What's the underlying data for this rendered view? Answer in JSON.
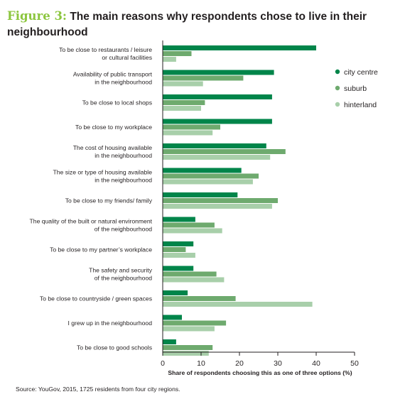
{
  "title": {
    "figure_label": "Figure 3:",
    "text": "The main reasons why respondents chose to live in their neighbourhood"
  },
  "source": "Source: YouGov, 2015, 1725 residents from four city regions.",
  "chart_data": {
    "type": "bar",
    "orientation": "horizontal",
    "title": "The main reasons why respondents chose to live in their neighbourhood",
    "xlabel": "Share of respondents choosing this as one of three options (%)",
    "ylabel": "",
    "xlim": [
      0,
      50
    ],
    "x_ticks": [
      0,
      10,
      20,
      30,
      40,
      50
    ],
    "grid": false,
    "legend_position": "top-right",
    "categories": [
      [
        "To be close to restaurants / leisure",
        "or cultural facilities"
      ],
      [
        "Availability of public transport",
        "in the neighbourhood"
      ],
      [
        "To be close to local shops"
      ],
      [
        "To be close to my workplace"
      ],
      [
        "The cost of housing available",
        "in the neighbourhood"
      ],
      [
        "The size or type of housing available",
        "in the neighbourhood"
      ],
      [
        "To be close to my friends/ family"
      ],
      [
        "The quality of the built or natural environment",
        "of the neighbourhood"
      ],
      [
        "To be close to my partner’s workplace"
      ],
      [
        "The safety and security",
        "of the neighbourhood"
      ],
      [
        "To be close to countryside / green spaces"
      ],
      [
        "I grew up in the neighbourhood"
      ],
      [
        "To be close to good schools"
      ]
    ],
    "series": [
      {
        "name": "city centre",
        "color": "#00854a",
        "values": [
          40,
          29,
          28.5,
          28.5,
          27,
          20.5,
          19.5,
          8.5,
          8,
          8,
          6.5,
          5,
          3.5
        ]
      },
      {
        "name": "suburb",
        "color": "#6eaa6e",
        "values": [
          7.5,
          21,
          11,
          15,
          32,
          25,
          30,
          13.5,
          6,
          14,
          19,
          16.5,
          13
        ]
      },
      {
        "name": "hinterland",
        "color": "#a8cfaa",
        "values": [
          3.5,
          10.5,
          10,
          13,
          28,
          23.5,
          28.5,
          15.5,
          8.5,
          16,
          39,
          13.5,
          12
        ]
      }
    ]
  }
}
